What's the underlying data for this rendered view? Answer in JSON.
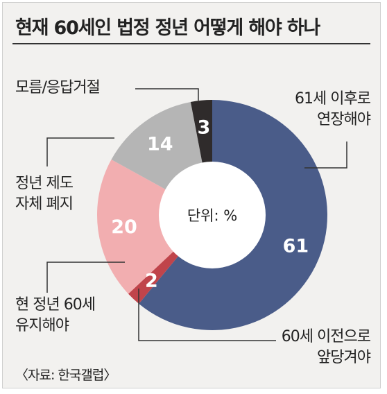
{
  "title": "현재 60세인 법정 정년 어떻게 해야 하나",
  "source": "〈자료: 한국갤럽〉",
  "chart_data": {
    "type": "pie",
    "title": "현재 60세인 법정 정년 어떻게 해야 하나",
    "center_label": "단위: %",
    "slices": [
      {
        "label": "61세 이후로 연장해야",
        "label_lines": [
          "61세 이후로",
          "연장해야"
        ],
        "value": 61,
        "color": "#4a5c89",
        "text_color": "#ffffff"
      },
      {
        "label": "60세 이전으로 앞당겨야",
        "label_lines": [
          "60세 이전으로",
          "앞당겨야"
        ],
        "value": 2,
        "color": "#c0444b",
        "text_color": "#ffffff"
      },
      {
        "label": "현 정년 60세 유지해야",
        "label_lines": [
          "현 정년 60세",
          "유지해야"
        ],
        "value": 20,
        "color": "#f2aeb0",
        "text_color": "#ffffff"
      },
      {
        "label": "정년 제도 자체 폐지",
        "label_lines": [
          "정년 제도",
          "자체 폐지"
        ],
        "value": 14,
        "color": "#b5b5b5",
        "text_color": "#ffffff"
      },
      {
        "label": "모름/응답거절",
        "label_lines": [
          "모름/응답거절"
        ],
        "value": 3,
        "color": "#2f2b2b",
        "text_color": "#ffffff"
      }
    ]
  }
}
